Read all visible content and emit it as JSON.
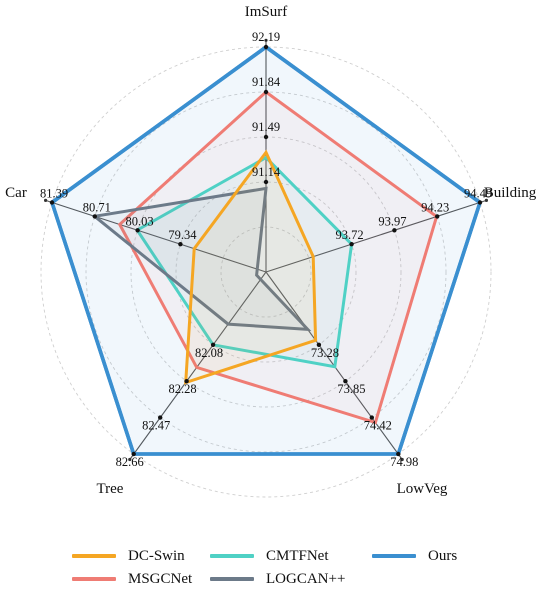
{
  "chart_data": {
    "type": "radar",
    "axes": [
      "ImSurf",
      "Building",
      "LowVeg",
      "Tree",
      "Car"
    ],
    "scales": [
      {
        "axis": "ImSurf",
        "ticks": [
          91.14,
          91.49,
          91.84,
          92.19
        ]
      },
      {
        "axis": "Building",
        "ticks": [
          93.72,
          93.97,
          94.23,
          94.49
        ]
      },
      {
        "axis": "LowVeg",
        "ticks": [
          73.28,
          73.85,
          74.42,
          74.98
        ]
      },
      {
        "axis": "Tree",
        "ticks": [
          82.08,
          82.28,
          82.47,
          82.66
        ]
      },
      {
        "axis": "Car",
        "ticks": [
          79.34,
          80.03,
          80.71,
          81.39
        ]
      }
    ],
    "tick_fractions": [
      0.4,
      0.6,
      0.8,
      1.0
    ],
    "series": [
      {
        "name": "DC-Swin",
        "color": "#f5a623",
        "values": [
          91.37,
          93.49,
          73.21,
          82.28,
          79.12
        ]
      },
      {
        "name": "MSGCNet",
        "color": "#ef7c74",
        "values": [
          91.84,
          94.23,
          74.49,
          82.2,
          80.31
        ]
      },
      {
        "name": "CMTFNet",
        "color": "#4fd1c5",
        "values": [
          91.33,
          93.72,
          73.62,
          82.08,
          80.03
        ]
      },
      {
        "name": "LOGCAN++",
        "color": "#6c7a89",
        "values": [
          91.09,
          93.15,
          73.04,
          81.97,
          80.71
        ]
      },
      {
        "name": "Ours",
        "color": "#3a8fd0",
        "values": [
          92.19,
          94.49,
          74.98,
          82.66,
          81.39
        ]
      }
    ],
    "legend_placement": "bottom"
  }
}
